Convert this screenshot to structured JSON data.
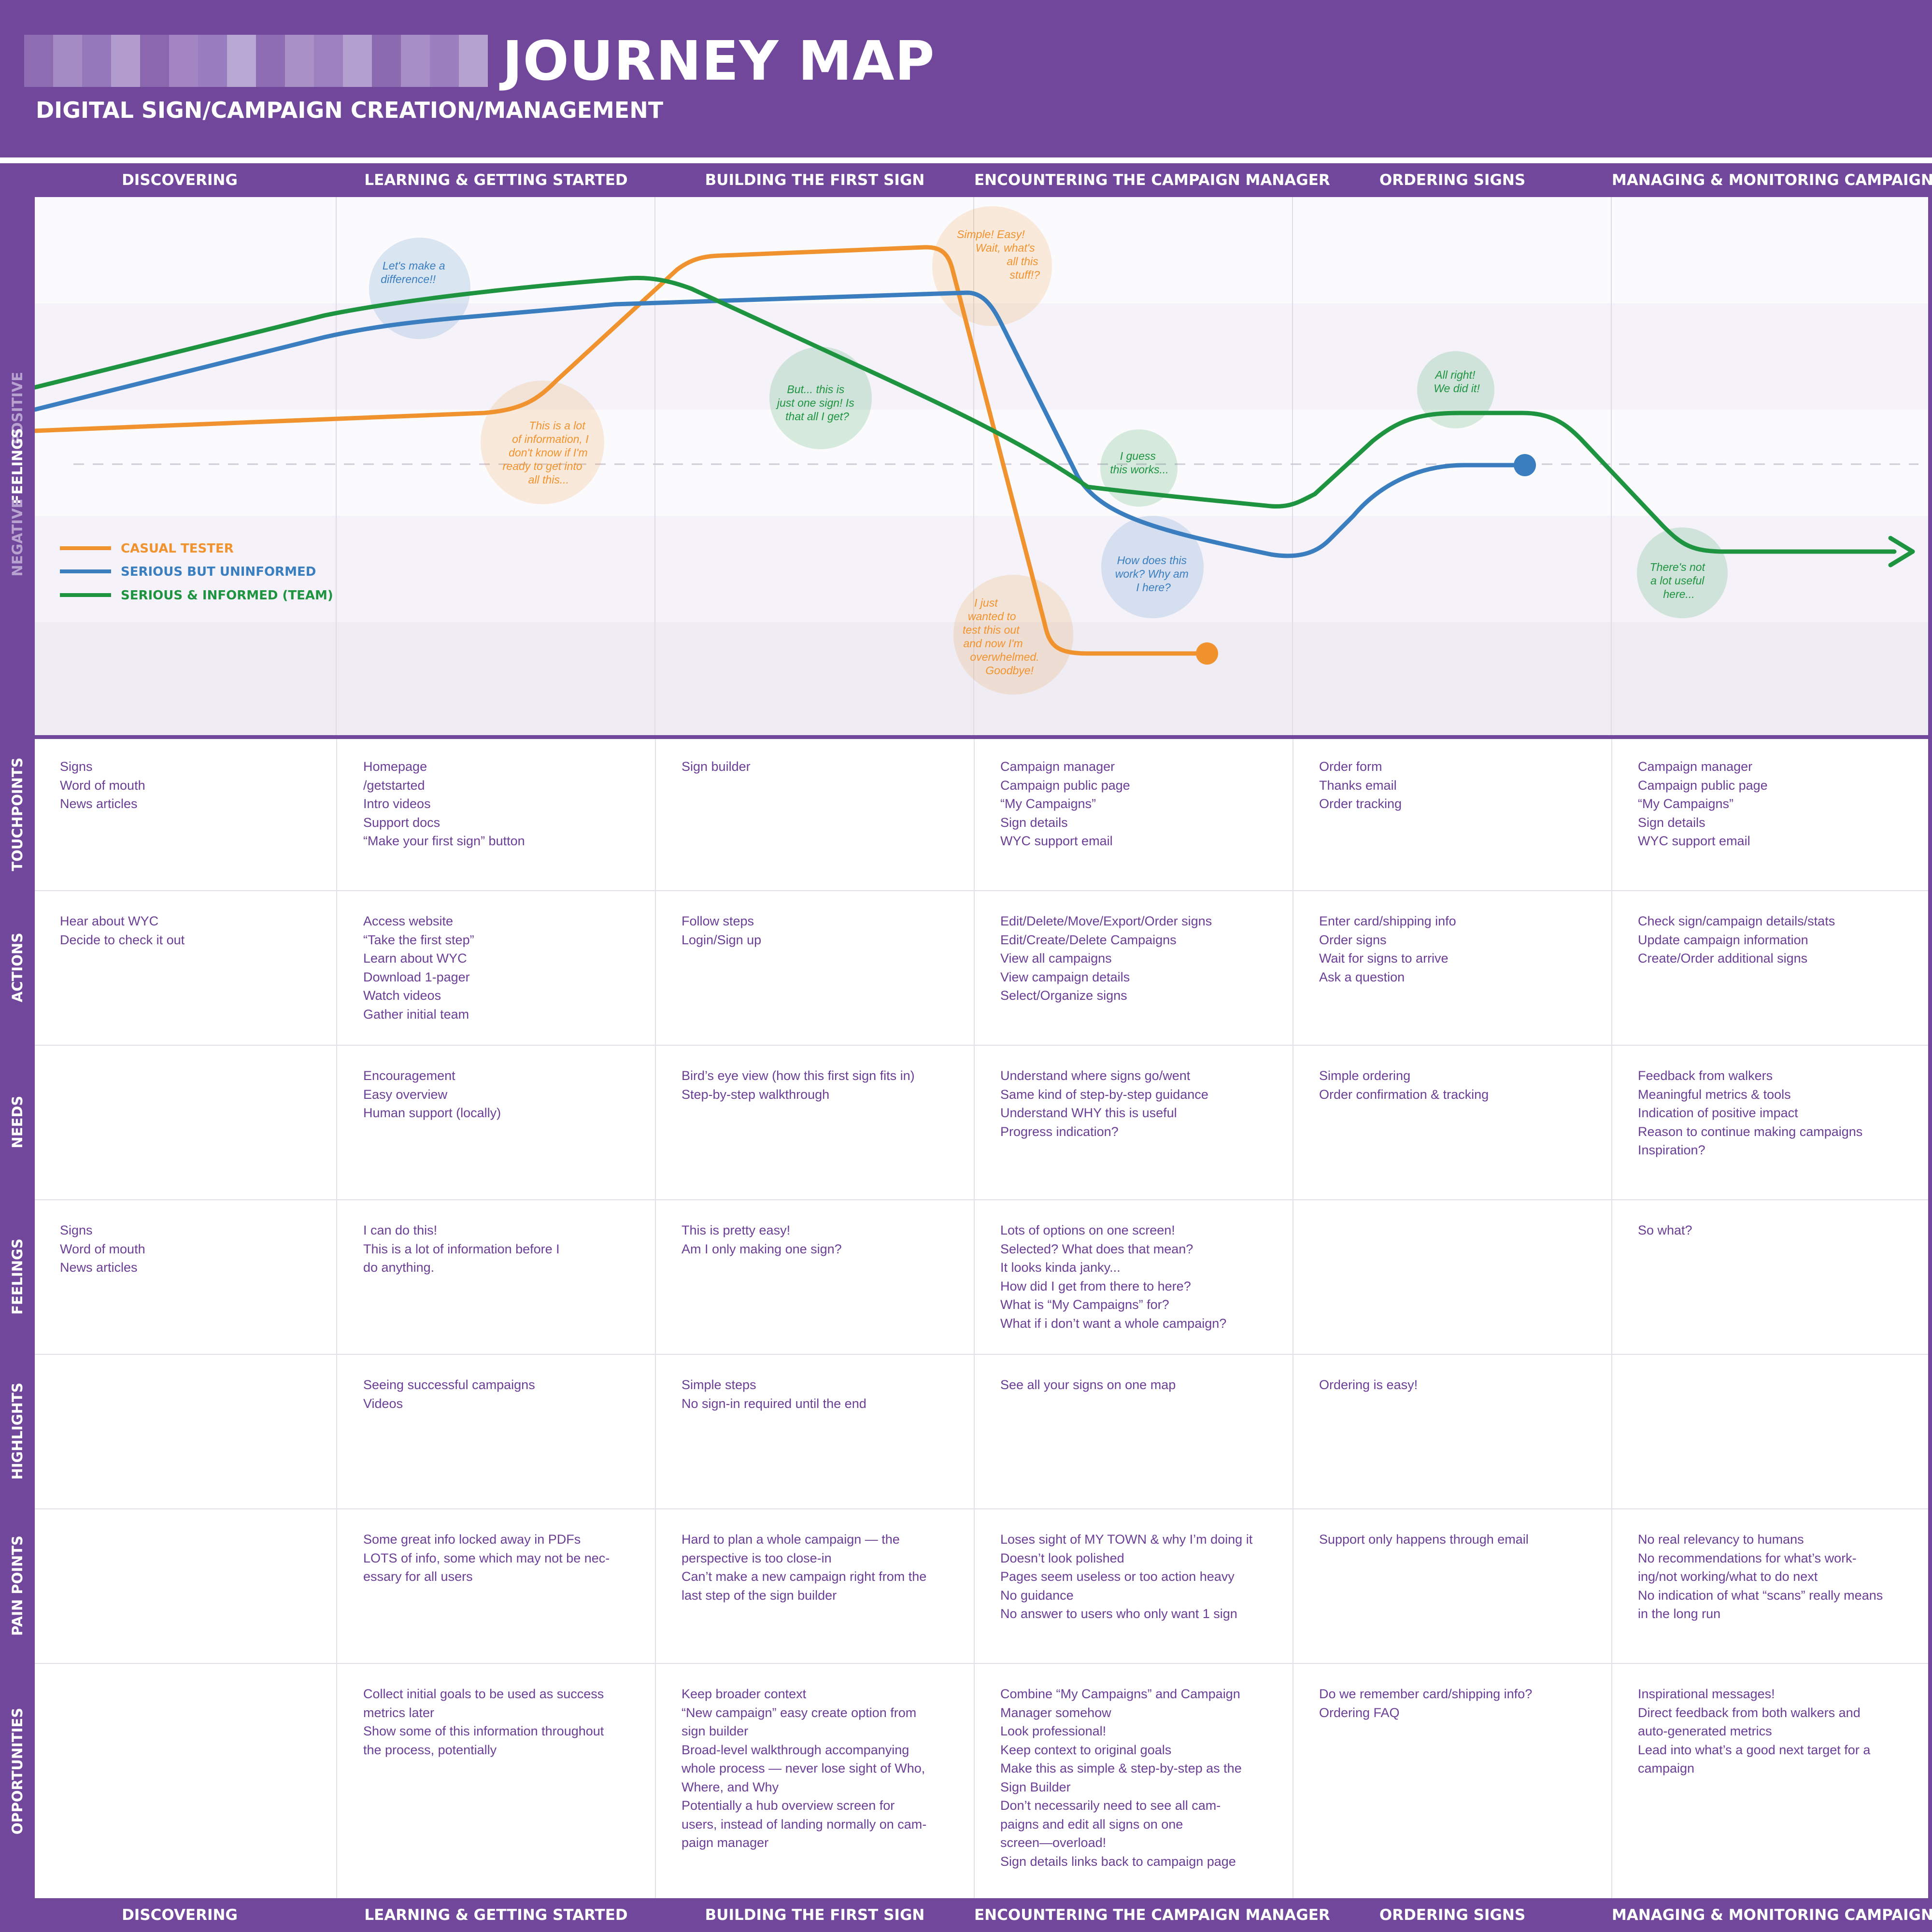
{
  "header": {
    "title": "JOURNEY MAP",
    "subtitle": "DIGITAL SIGN/CAMPAIGN CREATION/MANAGEMENT"
  },
  "phases": [
    "DISCOVERING",
    "LEARNING & GETTING STARTED",
    "BUILDING THE FIRST SIGN",
    "ENCOUNTERING THE CAMPAIGN MANAGER",
    "ORDERING SIGNS",
    "MANAGING & MONITORING CAMPAIGNS"
  ],
  "feelings_axis": {
    "label": "FEELINGS",
    "positive": "POSITIVE",
    "negative": "NEGATIVE"
  },
  "legend": [
    {
      "name": "CASUAL TESTER",
      "color": "#f0932f"
    },
    {
      "name": "SERIOUS BUT UNINFORMED",
      "color": "#3a7ebf"
    },
    {
      "name": "SERIOUS & INFORMED (TEAM)",
      "color": "#1e9440"
    }
  ],
  "bubbles": [
    {
      "lines": [
        "Let's make a",
        "difference!!"
      ],
      "color": "#3a7ebf"
    },
    {
      "lines": [
        "This is a lot",
        "of information, I",
        "don't know if I'm",
        "ready to get into",
        "all this..."
      ],
      "color": "#f0932f"
    },
    {
      "lines": [
        "But... this is",
        "just one sign! Is",
        "that all I get?"
      ],
      "color": "#1e9440"
    },
    {
      "lines": [
        "Simple! Easy!",
        "Wait, what's",
        "all this",
        "stuff!?"
      ],
      "color": "#f0932f"
    },
    {
      "lines": [
        "I guess",
        "this works..."
      ],
      "color": "#1e9440"
    },
    {
      "lines": [
        "How does this",
        "work? Why am",
        "I here?"
      ],
      "color": "#3a7ebf"
    },
    {
      "lines": [
        "I just",
        "wanted to",
        "test this out",
        "and now I'm",
        "overwhelmed.",
        "Goodbye!"
      ],
      "color": "#f0932f"
    },
    {
      "lines": [
        "All right!",
        "We did it!"
      ],
      "color": "#1e9440"
    },
    {
      "lines": [
        "There's not",
        "a lot useful",
        "here..."
      ],
      "color": "#1e9440"
    }
  ],
  "rows": [
    {
      "label": "TOUCHPOINTS",
      "cells": [
        [
          "Signs",
          "Word of mouth",
          "News articles"
        ],
        [
          "Homepage",
          "/getstarted",
          "Intro videos",
          "Support docs",
          "“Make your first sign” button"
        ],
        [
          "Sign builder"
        ],
        [
          "Campaign manager",
          "Campaign public page",
          "“My Campaigns”",
          "Sign details",
          "WYC support email"
        ],
        [
          "Order form",
          "Thanks email",
          "Order tracking"
        ],
        [
          "Campaign manager",
          "Campaign public page",
          "“My Campaigns”",
          "Sign details",
          "WYC support email"
        ]
      ]
    },
    {
      "label": "ACTIONS",
      "cells": [
        [
          "Hear about WYC",
          "Decide to check it out"
        ],
        [
          "Access website",
          "“Take the first step”",
          "Learn about WYC",
          "Download 1-pager",
          "Watch videos",
          "Gather initial team"
        ],
        [
          "Follow steps",
          "Login/Sign up"
        ],
        [
          "Edit/Delete/Move/Export/Order signs",
          "Edit/Create/Delete Campaigns",
          "View all campaigns",
          "View campaign details",
          "Select/Organize signs"
        ],
        [
          "Enter card/shipping info",
          "Order signs",
          "Wait for signs to arrive",
          "Ask a question"
        ],
        [
          "Check sign/campaign details/stats",
          "Update campaign information",
          "Create/Order additional signs"
        ]
      ]
    },
    {
      "label": "NEEDS",
      "cells": [
        [],
        [
          "Encouragement",
          "Easy overview",
          "Human support (locally)"
        ],
        [
          "Bird’s eye view (how this first sign fits in)",
          "Step-by-step walkthrough"
        ],
        [
          "Understand where signs go/went",
          "Same kind of step-by-step guidance",
          "Understand WHY this is useful",
          "Progress indication?"
        ],
        [
          "Simple ordering",
          "Order confirmation & tracking"
        ],
        [
          "Feedback from walkers",
          "Meaningful metrics & tools",
          "Indication of positive impact",
          "Reason to continue making campaigns",
          "Inspiration?"
        ]
      ]
    },
    {
      "label": "FEELINGS",
      "cells": [
        [
          "Signs",
          "Word of mouth",
          "News articles"
        ],
        [
          "I can do this!",
          "This is a lot of information before I",
          "do anything."
        ],
        [
          "This is pretty easy!",
          "Am I only making one sign?"
        ],
        [
          "Lots of options on one screen!",
          "Selected? What does that mean?",
          "It looks kinda janky...",
          "How did I get from there to here?",
          "What is “My Campaigns” for?",
          "What if i don’t want a whole campaign?"
        ],
        [],
        [
          "So what?"
        ]
      ]
    },
    {
      "label": "HIGHLIGHTS",
      "cells": [
        [],
        [
          "Seeing successful campaigns",
          "Videos"
        ],
        [
          "Simple steps",
          "No sign-in required until the end"
        ],
        [
          "See all your signs on one map"
        ],
        [
          "Ordering is easy!"
        ],
        []
      ]
    },
    {
      "label": "PAIN POINTS",
      "cells": [
        [],
        [
          "Some great info locked away in PDFs",
          "LOTS of info, some which may not be nec-",
          "essary for all users"
        ],
        [
          "Hard to plan a whole campaign — the",
          "perspective is too close-in",
          "Can’t make a new campaign right from the",
          "last step of the sign builder"
        ],
        [
          "Loses sight of MY TOWN & why I’m doing it",
          "Doesn’t look polished",
          "Pages seem useless or too action heavy",
          "No guidance",
          "No answer to users who only want 1 sign"
        ],
        [
          "Support only happens through email"
        ],
        [
          "No real relevancy to humans",
          "No recommendations for what’s work-",
          "ing/not working/what to do next",
          "No indication of what “scans” really means",
          "in the long run"
        ]
      ]
    },
    {
      "label": "OPPORTUNITIES",
      "cells": [
        [],
        [
          "Collect initial goals to be used as success",
          "metrics later",
          "Show some of this information throughout",
          "the process, potentially"
        ],
        [
          "Keep broader context",
          "“New campaign” easy create option from",
          "sign builder",
          "Broad-level walkthrough accompanying",
          "whole process — never lose sight of Who,",
          "Where, and Why",
          "Potentially a hub overview screen for",
          "users, instead of landing normally on cam-",
          "paign manager"
        ],
        [
          "Combine “My Campaigns” and Campaign",
          "Manager somehow",
          "Look professional!",
          "Keep context to original goals",
          "Make this as simple & step-by-step as the",
          "Sign Builder",
          "Don’t necessarily need to see all cam-",
          "paigns and edit all signs on one",
          "screen—overload!",
          "Sign details links back to campaign page"
        ],
        [
          "Do we remember card/shipping info?",
          "Ordering FAQ"
        ],
        [
          "Inspirational messages!",
          "Direct feedback from both walkers and",
          "auto-generated metrics",
          "Lead into what’s a good next target for a",
          "campaign"
        ]
      ]
    }
  ],
  "colors": {
    "purple": "#71479b",
    "text": "#6b3e95",
    "orange": "#f0932f",
    "blue": "#3a7ebf",
    "green": "#1e9440"
  }
}
